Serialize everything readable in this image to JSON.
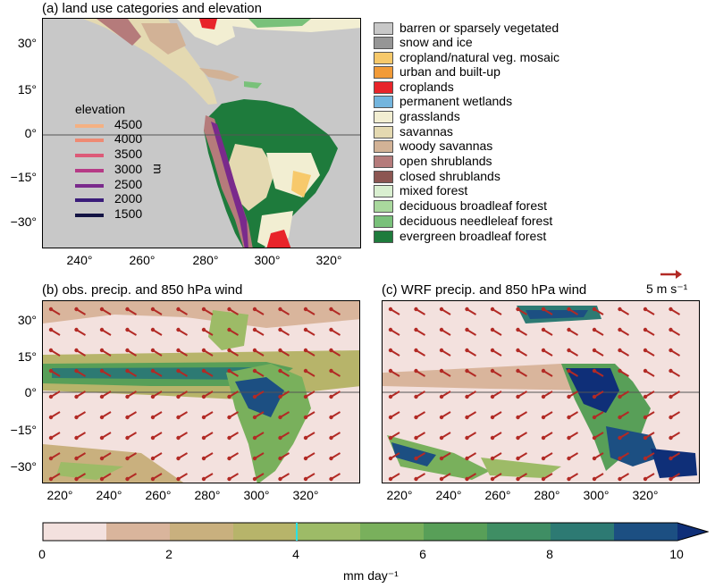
{
  "panel_a": {
    "title": "(a) land use categories and elevation",
    "y_ticks": [
      "30°",
      "15°",
      "0°",
      "−15°",
      "−30°"
    ],
    "x_ticks": [
      "240°",
      "260°",
      "280°",
      "300°",
      "320°"
    ],
    "elevation": {
      "title": "elevation",
      "unit": "m",
      "levels": [
        {
          "label": "4500",
          "color": "#f4b183"
        },
        {
          "label": "4000",
          "color": "#ee8a73"
        },
        {
          "label": "3500",
          "color": "#dd5a78"
        },
        {
          "label": "3000",
          "color": "#b63a86"
        },
        {
          "label": "2500",
          "color": "#7a2a8c"
        },
        {
          "label": "2000",
          "color": "#3b1d7a"
        },
        {
          "label": "1500",
          "color": "#141444"
        }
      ]
    },
    "land_use_legend": [
      {
        "label": "barren or sparsely vegetated",
        "color": "#c8c8c8"
      },
      {
        "label": "snow and ice",
        "color": "#969696"
      },
      {
        "label": "cropland/natural veg. mosaic",
        "color": "#f7c96b"
      },
      {
        "label": "urban and built-up",
        "color": "#f29b38"
      },
      {
        "label": "croplands",
        "color": "#e8242a"
      },
      {
        "label": "permanent wetlands",
        "color": "#73b5de"
      },
      {
        "label": "grasslands",
        "color": "#f2eed2"
      },
      {
        "label": "savannas",
        "color": "#e4d9b1"
      },
      {
        "label": "woody savannas",
        "color": "#d2b296"
      },
      {
        "label": "open shrublands",
        "color": "#b57b7b"
      },
      {
        "label": "closed shrublands",
        "color": "#8c5652"
      },
      {
        "label": "mixed forest",
        "color": "#d9efd0"
      },
      {
        "label": "deciduous broadleaf forest",
        "color": "#a9d89d"
      },
      {
        "label": "deciduous needleleaf forest",
        "color": "#79c17a"
      },
      {
        "label": "evergreen broadleaf forest",
        "color": "#1e7b3c"
      }
    ]
  },
  "panel_b": {
    "title": "(b) obs. precip. and 850 hPa wind",
    "y_ticks": [
      "30°",
      "15°",
      "0°",
      "−15°",
      "−30°"
    ],
    "x_ticks": [
      "220°",
      "240°",
      "260°",
      "280°",
      "300°",
      "320°"
    ]
  },
  "panel_c": {
    "title": "(c) WRF precip. and 850 hPa wind",
    "x_ticks": [
      "220°",
      "240°",
      "260°",
      "280°",
      "300°",
      "320°"
    ],
    "wind_reference": "5 m s⁻¹"
  },
  "colorbar": {
    "ticks": [
      "0",
      "2",
      "4",
      "6",
      "8",
      "10"
    ],
    "label": "mm day⁻¹",
    "colors": [
      "#f3e1de",
      "#d9b59c",
      "#c9b07e",
      "#b7b46a",
      "#9dbb67",
      "#79b05c",
      "#589f58",
      "#3f8e64",
      "#2d7a73",
      "#1c4f82",
      "#0f2f78"
    ]
  }
}
